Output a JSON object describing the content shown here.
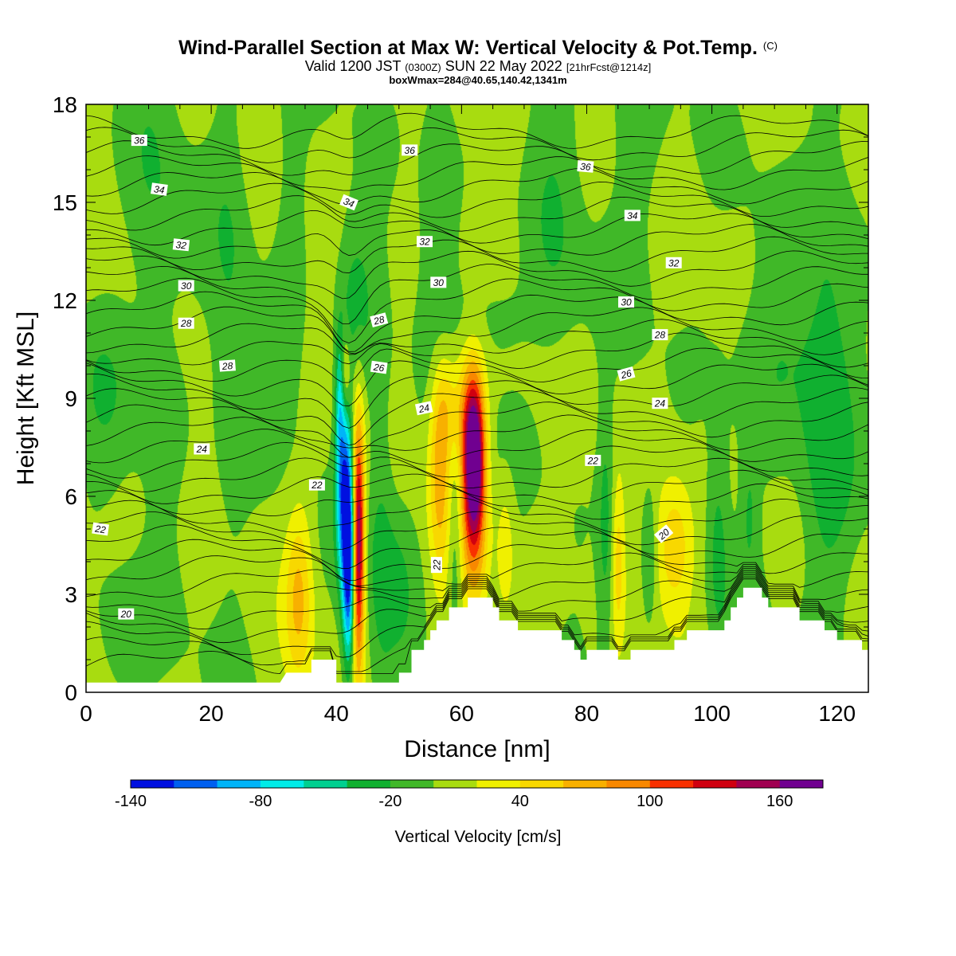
{
  "title": {
    "main": "Wind-Parallel Section at Max W: Vertical Velocity & Pot.Temp.",
    "copyright": "(C)",
    "valid_prefix": "Valid 1200 JST",
    "valid_utc": "(0300Z)",
    "valid_date": "SUN 22 May 2022",
    "forecast": "[21hrFcst@1214z]",
    "boxwmax": "boxWmax=284@40.65,140.42,1341m"
  },
  "chart_data": {
    "type": "heatmap",
    "xlabel": "Distance [nm]",
    "ylabel": "Height [Kft MSL]",
    "xlim": [
      0,
      125
    ],
    "ylim": [
      0,
      18
    ],
    "x_ticks": [
      0,
      20,
      40,
      60,
      80,
      100,
      120
    ],
    "y_ticks": [
      0,
      3,
      6,
      9,
      12,
      15,
      18
    ],
    "colorbar": {
      "label": "Vertical Velocity [cm/s]",
      "tick_values": [
        -140,
        -80,
        -20,
        40,
        100,
        160
      ],
      "bounds": [
        -140,
        180
      ],
      "colors": [
        "#0010e0",
        "#0060f0",
        "#00b4f8",
        "#00ece8",
        "#00d090",
        "#10b030",
        "#40b828",
        "#a8dc10",
        "#f0f000",
        "#f8d800",
        "#f8b000",
        "#f88800",
        "#f83000",
        "#d00010",
        "#a00050",
        "#700090"
      ]
    },
    "terrain": [
      {
        "x": 0,
        "h": 0.3
      },
      {
        "x": 31,
        "h": 0.3
      },
      {
        "x": 32,
        "h": 0.6
      },
      {
        "x": 36,
        "h": 0.6
      },
      {
        "x": 36,
        "h": 1.0
      },
      {
        "x": 40,
        "h": 1.0
      },
      {
        "x": 40,
        "h": 0.3
      },
      {
        "x": 50,
        "h": 0.3
      },
      {
        "x": 50,
        "h": 0.6
      },
      {
        "x": 52,
        "h": 0.6
      },
      {
        "x": 52,
        "h": 1.3
      },
      {
        "x": 54,
        "h": 1.3
      },
      {
        "x": 54,
        "h": 1.6
      },
      {
        "x": 55,
        "h": 1.6
      },
      {
        "x": 55,
        "h": 1.9
      },
      {
        "x": 56,
        "h": 1.9
      },
      {
        "x": 56,
        "h": 2.2
      },
      {
        "x": 58,
        "h": 2.2
      },
      {
        "x": 58,
        "h": 2.6
      },
      {
        "x": 61,
        "h": 2.6
      },
      {
        "x": 61,
        "h": 2.9
      },
      {
        "x": 65,
        "h": 2.9
      },
      {
        "x": 65,
        "h": 2.6
      },
      {
        "x": 66,
        "h": 2.6
      },
      {
        "x": 66,
        "h": 2.2
      },
      {
        "x": 69,
        "h": 2.2
      },
      {
        "x": 69,
        "h": 1.9
      },
      {
        "x": 76,
        "h": 1.9
      },
      {
        "x": 76,
        "h": 1.6
      },
      {
        "x": 78,
        "h": 1.6
      },
      {
        "x": 78,
        "h": 1.3
      },
      {
        "x": 79,
        "h": 1.3
      },
      {
        "x": 79,
        "h": 1.0
      },
      {
        "x": 80,
        "h": 1.0
      },
      {
        "x": 80,
        "h": 1.3
      },
      {
        "x": 85,
        "h": 1.3
      },
      {
        "x": 85,
        "h": 1.0
      },
      {
        "x": 87,
        "h": 1.0
      },
      {
        "x": 87,
        "h": 1.3
      },
      {
        "x": 94,
        "h": 1.3
      },
      {
        "x": 94,
        "h": 1.6
      },
      {
        "x": 96,
        "h": 1.6
      },
      {
        "x": 96,
        "h": 1.9
      },
      {
        "x": 102,
        "h": 1.9
      },
      {
        "x": 102,
        "h": 2.2
      },
      {
        "x": 103,
        "h": 2.2
      },
      {
        "x": 103,
        "h": 2.6
      },
      {
        "x": 104,
        "h": 2.6
      },
      {
        "x": 104,
        "h": 2.9
      },
      {
        "x": 105,
        "h": 2.9
      },
      {
        "x": 105,
        "h": 3.2
      },
      {
        "x": 108,
        "h": 3.2
      },
      {
        "x": 108,
        "h": 2.9
      },
      {
        "x": 109,
        "h": 2.9
      },
      {
        "x": 109,
        "h": 2.6
      },
      {
        "x": 114,
        "h": 2.6
      },
      {
        "x": 114,
        "h": 2.2
      },
      {
        "x": 118,
        "h": 2.2
      },
      {
        "x": 118,
        "h": 1.9
      },
      {
        "x": 120,
        "h": 1.9
      },
      {
        "x": 120,
        "h": 1.6
      },
      {
        "x": 124,
        "h": 1.6
      },
      {
        "x": 124,
        "h": 1.3
      },
      {
        "x": 125,
        "h": 1.3
      }
    ],
    "w_features": [
      {
        "x": 42,
        "z": 4.2,
        "sx": 0.7,
        "sz": 2.3,
        "w": -150
      },
      {
        "x": 41,
        "z": 6.2,
        "sx": 0.8,
        "sz": 2.0,
        "w": -90
      },
      {
        "x": 40.5,
        "z": 9.0,
        "sx": 0.5,
        "sz": 1.5,
        "w": -50
      },
      {
        "x": 43.5,
        "z": 4.6,
        "sx": 0.7,
        "sz": 2.6,
        "w": 170
      },
      {
        "x": 41.5,
        "z": 9.8,
        "sx": 0.5,
        "sz": 0.8,
        "w": 45
      },
      {
        "x": 62,
        "z": 7.2,
        "sx": 1.2,
        "sz": 1.6,
        "w": 160
      },
      {
        "x": 62,
        "z": 5.0,
        "sx": 1.5,
        "sz": 1.8,
        "w": 70
      },
      {
        "x": 61.5,
        "z": 8.6,
        "sx": 1.5,
        "sz": 1.4,
        "w": 55
      },
      {
        "x": 56.5,
        "z": 6.8,
        "sx": 1.2,
        "sz": 2.3,
        "w": 65
      },
      {
        "x": 58,
        "z": 8.8,
        "sx": 1.6,
        "sz": 1.2,
        "w": 40
      },
      {
        "x": 34,
        "z": 3.0,
        "sx": 1.5,
        "sz": 2.0,
        "w": 55
      },
      {
        "x": 94,
        "z": 4.5,
        "sx": 2.2,
        "sz": 1.5,
        "w": 55
      },
      {
        "x": 85,
        "z": 4.0,
        "sx": 0.7,
        "sz": 1.8,
        "w": 40
      },
      {
        "x": 67,
        "z": 4.5,
        "sx": 1.0,
        "sz": 1.5,
        "w": 30
      },
      {
        "x": 47,
        "z": 5.0,
        "sx": 1.5,
        "sz": 4.0,
        "w": -28
      },
      {
        "x": 50,
        "z": 3.5,
        "sx": 2.0,
        "sz": 2.0,
        "w": -22
      },
      {
        "x": 59,
        "z": 4.5,
        "sx": 0.8,
        "sz": 2.0,
        "w": -30
      },
      {
        "x": 83,
        "z": 5.0,
        "sx": 0.9,
        "sz": 3.0,
        "w": -32
      },
      {
        "x": 90,
        "z": 4.2,
        "sx": 0.9,
        "sz": 1.5,
        "w": -30
      },
      {
        "x": 101,
        "z": 4.5,
        "sx": 1.2,
        "sz": 2.5,
        "w": -30
      },
      {
        "x": 106,
        "z": 5.5,
        "sx": 1.0,
        "sz": 1.5,
        "w": -24
      },
      {
        "x": 118,
        "z": 5.8,
        "sx": 3.0,
        "sz": 3.0,
        "w": -24
      },
      {
        "x": 110,
        "z": 10.0,
        "sx": 6.0,
        "sz": 2.5,
        "w": -20
      },
      {
        "x": 23,
        "z": 12.0,
        "sx": 2.2,
        "sz": 6.0,
        "w": -22
      },
      {
        "x": 11,
        "z": 14.0,
        "sx": 3.0,
        "sz": 5.0,
        "w": -22
      },
      {
        "x": 33,
        "z": 15.0,
        "sx": 1.5,
        "sz": 5.0,
        "w": -20
      },
      {
        "x": 56,
        "z": 15.0,
        "sx": 2.0,
        "sz": 4.0,
        "w": -22
      },
      {
        "x": 75,
        "z": 14.0,
        "sx": 3.0,
        "sz": 4.0,
        "w": -20
      },
      {
        "x": 119,
        "z": 13.0,
        "sx": 3.0,
        "sz": 6.0,
        "w": -22
      },
      {
        "x": 88,
        "z": 16.5,
        "sx": 3.0,
        "sz": 3.0,
        "w": -20
      },
      {
        "x": 65,
        "z": 11.5,
        "sx": 4.0,
        "sz": 1.0,
        "w": -18
      },
      {
        "x": 6,
        "z": 1.5,
        "sx": 3.0,
        "sz": 1.5,
        "w": -22
      },
      {
        "x": 3,
        "z": 9.0,
        "sx": 3.0,
        "sz": 2.0,
        "w": -18
      },
      {
        "x": 43,
        "z": 12.0,
        "sx": 2.0,
        "sz": 2.0,
        "w": -30
      }
    ],
    "theta_contour_values": [
      20,
      22,
      24,
      26,
      28,
      30,
      32,
      34,
      36
    ],
    "theta_labels": [
      {
        "text": "36",
        "x": 8.5,
        "z": 16.9,
        "rot": 0
      },
      {
        "text": "34",
        "x": 11.7,
        "z": 15.4,
        "rot": 8
      },
      {
        "text": "32",
        "x": 15.2,
        "z": 13.7,
        "rot": 6
      },
      {
        "text": "30",
        "x": 16.0,
        "z": 12.45,
        "rot": 0
      },
      {
        "text": "28",
        "x": 16.0,
        "z": 11.3,
        "rot": 0
      },
      {
        "text": "28",
        "x": 22.6,
        "z": 10.0,
        "rot": -4
      },
      {
        "text": "24",
        "x": 18.5,
        "z": 7.45,
        "rot": 0
      },
      {
        "text": "22",
        "x": 2.3,
        "z": 5.0,
        "rot": 8
      },
      {
        "text": "20",
        "x": 6.4,
        "z": 2.4,
        "rot": 0
      },
      {
        "text": "22",
        "x": 36.9,
        "z": 6.35,
        "rot": 0
      },
      {
        "text": "34",
        "x": 42.0,
        "z": 15.0,
        "rot": 22
      },
      {
        "text": "28",
        "x": 46.8,
        "z": 11.4,
        "rot": -15
      },
      {
        "text": "26",
        "x": 46.8,
        "z": 9.95,
        "rot": 8
      },
      {
        "text": "24",
        "x": 54.0,
        "z": 8.7,
        "rot": -12
      },
      {
        "text": "22",
        "x": 56.0,
        "z": 3.9,
        "rot": -90
      },
      {
        "text": "36",
        "x": 51.7,
        "z": 16.6,
        "rot": 0
      },
      {
        "text": "32",
        "x": 54.1,
        "z": 13.8,
        "rot": 0
      },
      {
        "text": "30",
        "x": 56.3,
        "z": 12.55,
        "rot": 0
      },
      {
        "text": "36",
        "x": 79.8,
        "z": 16.1,
        "rot": 5
      },
      {
        "text": "34",
        "x": 87.3,
        "z": 14.6,
        "rot": 0
      },
      {
        "text": "32",
        "x": 93.9,
        "z": 13.15,
        "rot": 0
      },
      {
        "text": "30",
        "x": 86.3,
        "z": 11.95,
        "rot": 0
      },
      {
        "text": "28",
        "x": 91.7,
        "z": 10.95,
        "rot": 0
      },
      {
        "text": "26",
        "x": 86.3,
        "z": 9.75,
        "rot": -15
      },
      {
        "text": "24",
        "x": 91.7,
        "z": 8.85,
        "rot": 0
      },
      {
        "text": "22",
        "x": 81.0,
        "z": 7.1,
        "rot": 0
      },
      {
        "text": "20",
        "x": 92.3,
        "z": 4.85,
        "rot": -40
      }
    ]
  }
}
